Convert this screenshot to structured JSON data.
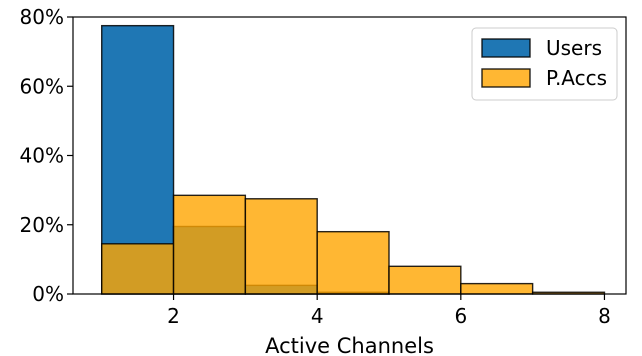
{
  "chart_data": {
    "type": "bar",
    "subtype": "overlaid-histogram",
    "title": "",
    "xlabel": "Active Channels",
    "ylabel": "",
    "xlim": [
      0.6,
      8.3
    ],
    "ylim": [
      0,
      80
    ],
    "xticks": [
      2,
      4,
      6,
      8
    ],
    "yticks": [
      0,
      20,
      40,
      60,
      80
    ],
    "ytick_format": "percent",
    "grid": false,
    "legend_position": "upper right",
    "series": [
      {
        "name": "Users",
        "color": "#1f77b4",
        "bins": [
          {
            "x0": 1,
            "x1": 2,
            "value": 77.5
          },
          {
            "x0": 2,
            "x1": 3,
            "value": 19.5
          },
          {
            "x0": 3,
            "x1": 4,
            "value": 2.5
          },
          {
            "x0": 4,
            "x1": 5,
            "value": 0.5
          },
          {
            "x0": 5,
            "x1": 6,
            "value": 0
          },
          {
            "x0": 6,
            "x1": 7,
            "value": 0
          },
          {
            "x0": 7,
            "x1": 8,
            "value": 0
          }
        ]
      },
      {
        "name": "P.Accs",
        "color": "#ffa500",
        "alpha": 0.8,
        "bins": [
          {
            "x0": 1,
            "x1": 2,
            "value": 14.5
          },
          {
            "x0": 2,
            "x1": 3,
            "value": 28.5
          },
          {
            "x0": 3,
            "x1": 4,
            "value": 27.5
          },
          {
            "x0": 4,
            "x1": 5,
            "value": 18
          },
          {
            "x0": 5,
            "x1": 6,
            "value": 8
          },
          {
            "x0": 6,
            "x1": 7,
            "value": 3
          },
          {
            "x0": 7,
            "x1": 8,
            "value": 0.5
          }
        ]
      }
    ]
  }
}
